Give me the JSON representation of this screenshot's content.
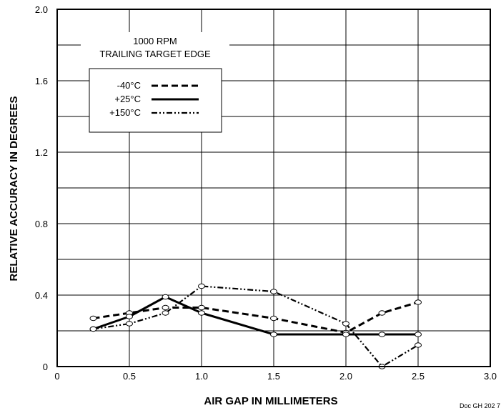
{
  "chart_data": {
    "type": "line",
    "title": "1000 RPM",
    "subtitle": "TRAILING TARGET EDGE",
    "xlabel": "AIR GAP IN MILLIMETERS",
    "ylabel": "RELATIVE ACCURACY IN DEGREES",
    "xlim": [
      0,
      3.0
    ],
    "ylim": [
      0,
      2.0
    ],
    "x_ticks": [
      0,
      0.5,
      1.0,
      1.5,
      2.0,
      2.5,
      3.0
    ],
    "x_tick_labels": [
      "0",
      "0.5",
      "1.0",
      "1.5",
      "2.0",
      "2.5",
      "3.0"
    ],
    "y_ticks": [
      0,
      0.4,
      0.8,
      1.2,
      1.6,
      2.0
    ],
    "y_tick_labels": [
      "0",
      "0.4",
      "0.8",
      "1.2",
      "1.6",
      "2.0"
    ],
    "grid": true,
    "legend_position": "top-left",
    "series": [
      {
        "name": "-40°C",
        "style": "dashed",
        "color": "#000000",
        "points": [
          [
            0.25,
            0.27
          ],
          [
            0.5,
            0.3
          ],
          [
            0.75,
            0.33
          ],
          [
            1.0,
            0.33
          ],
          [
            1.5,
            0.27
          ],
          [
            2.0,
            0.19
          ],
          [
            2.25,
            0.3
          ],
          [
            2.5,
            0.36
          ]
        ]
      },
      {
        "name": "+25°C",
        "style": "solid",
        "color": "#000000",
        "points": [
          [
            0.25,
            0.21
          ],
          [
            0.5,
            0.28
          ],
          [
            0.75,
            0.39
          ],
          [
            1.0,
            0.3
          ],
          [
            1.5,
            0.18
          ],
          [
            2.0,
            0.18
          ],
          [
            2.25,
            0.18
          ],
          [
            2.5,
            0.18
          ]
        ]
      },
      {
        "name": "+150°C",
        "style": "dash-dot-dot",
        "color": "#000000",
        "points": [
          [
            0.25,
            0.21
          ],
          [
            0.5,
            0.24
          ],
          [
            0.75,
            0.3
          ],
          [
            1.0,
            0.45
          ],
          [
            1.5,
            0.42
          ],
          [
            2.0,
            0.24
          ],
          [
            2.25,
            0.0
          ],
          [
            2.5,
            0.12
          ]
        ]
      }
    ]
  },
  "footer": {
    "reference": "Doc GH 202 7"
  }
}
